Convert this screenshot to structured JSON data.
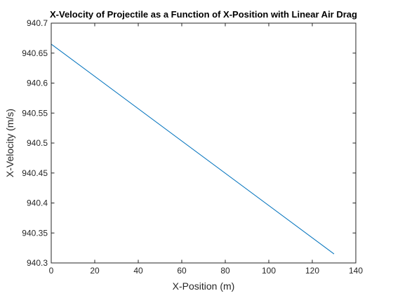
{
  "chart_data": {
    "type": "line",
    "title": "X-Velocity of Projectile as a Function of X-Position with Linear Air Drag",
    "xlabel": "X-Position (m)",
    "ylabel": "X-Velocity (m/s)",
    "xlim": [
      0,
      140
    ],
    "ylim": [
      940.3,
      940.7
    ],
    "xticks": [
      0,
      20,
      40,
      60,
      80,
      100,
      120,
      140
    ],
    "xtick_labels": [
      "0",
      "20",
      "40",
      "60",
      "80",
      "100",
      "120",
      "140"
    ],
    "yticks": [
      940.3,
      940.35,
      940.4,
      940.45,
      940.5,
      940.55,
      940.6,
      940.65,
      940.7
    ],
    "ytick_labels": [
      "940.3",
      "940.35",
      "940.4",
      "940.45",
      "940.5",
      "940.55",
      "940.6",
      "940.65",
      "940.7"
    ],
    "grid": false,
    "series": [
      {
        "color": "#0072BD",
        "x": [
          0,
          130
        ],
        "y": [
          940.665,
          940.315
        ]
      }
    ]
  }
}
